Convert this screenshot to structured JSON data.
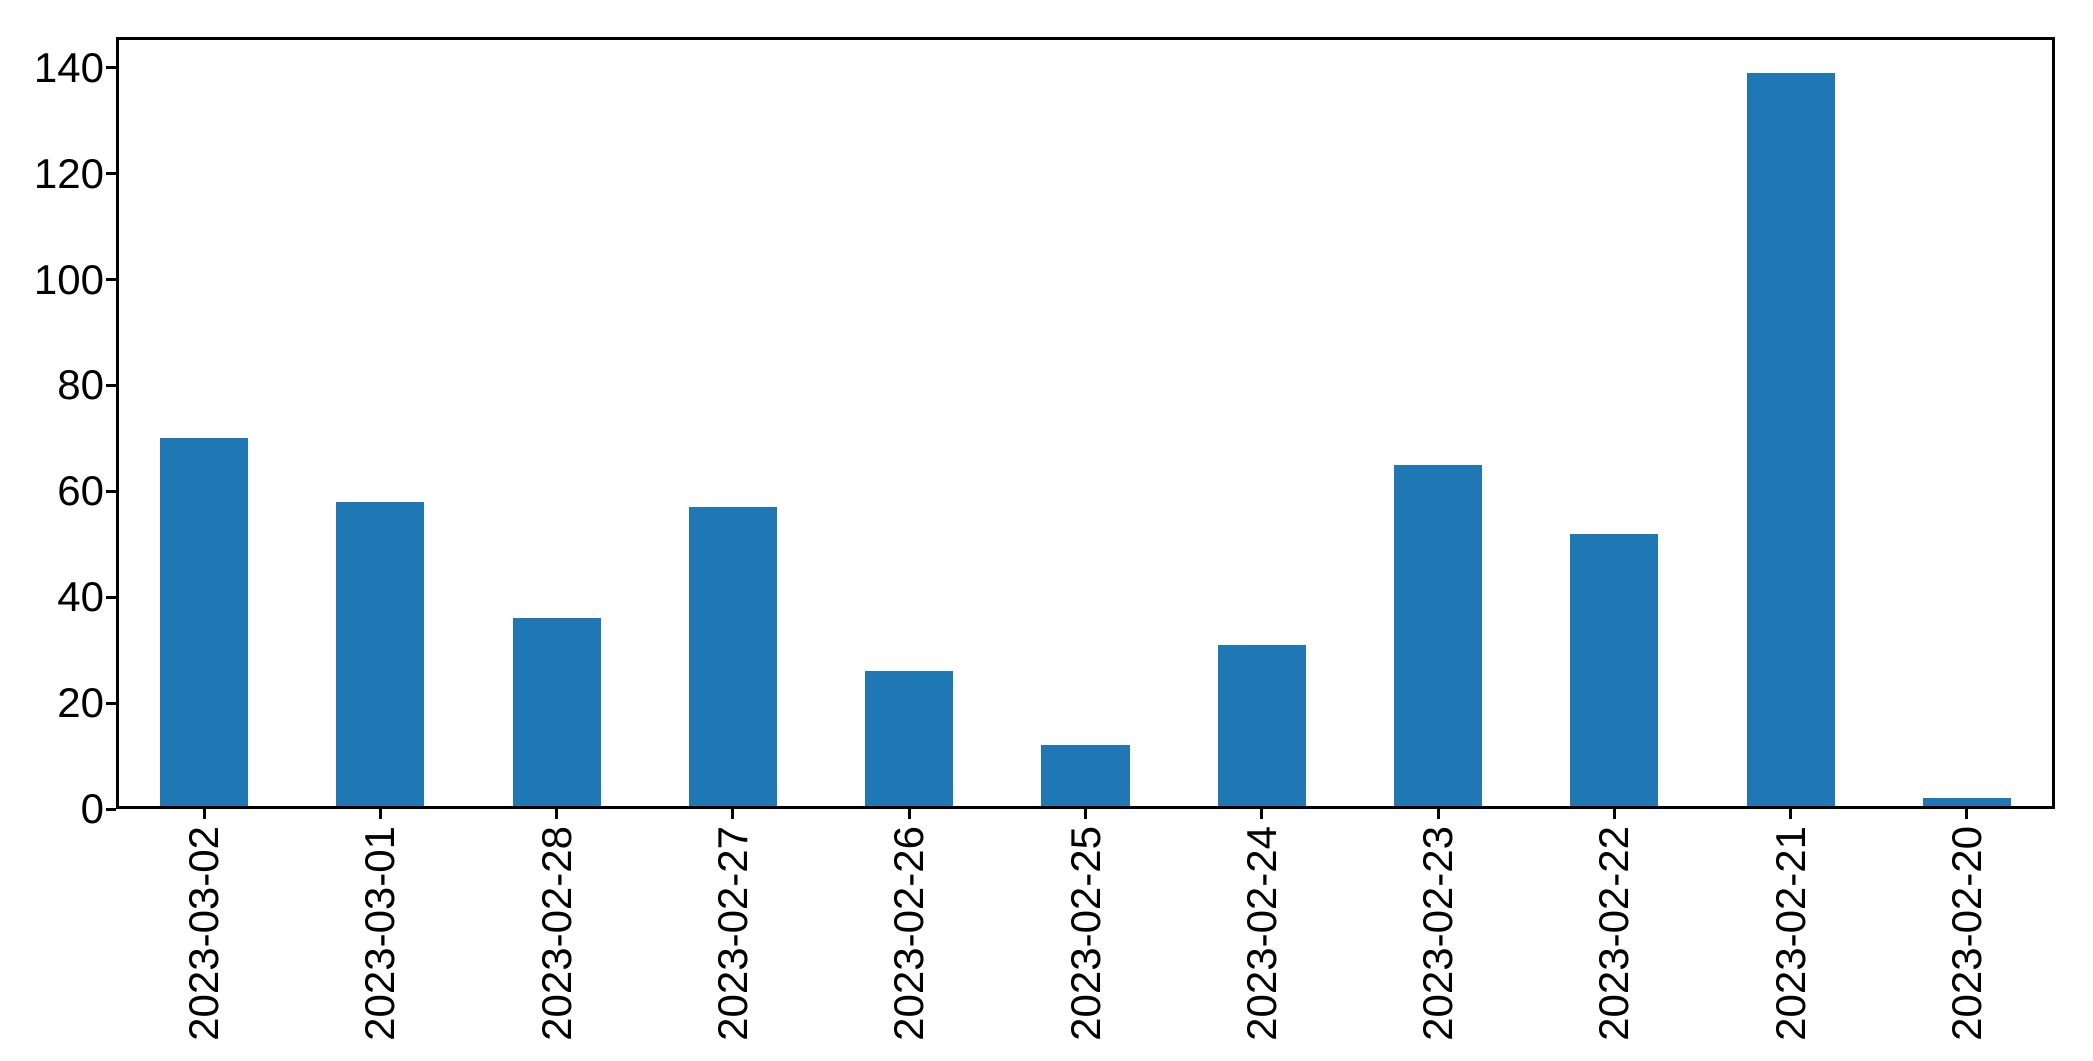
{
  "chart_data": {
    "type": "bar",
    "categories": [
      "2023-03-02",
      "2023-03-01",
      "2023-02-28",
      "2023-02-27",
      "2023-02-26",
      "2023-02-25",
      "2023-02-24",
      "2023-02-23",
      "2023-02-22",
      "2023-02-21",
      "2023-02-20"
    ],
    "values": [
      70,
      58,
      36,
      57,
      26,
      12,
      31,
      65,
      52,
      139,
      2
    ],
    "title": "",
    "xlabel": "",
    "ylabel": "",
    "ylim": [
      0,
      145.8
    ],
    "yticks": [
      0,
      20,
      40,
      60,
      80,
      100,
      120,
      140
    ],
    "x_tick_rotation_deg": 90,
    "bar_width_fraction": 0.5,
    "grid": false,
    "legend": null,
    "colors": {
      "bar": "#1f77b4",
      "background": "#ffffff",
      "spine": "#000000",
      "tick_label": "#000000"
    }
  }
}
